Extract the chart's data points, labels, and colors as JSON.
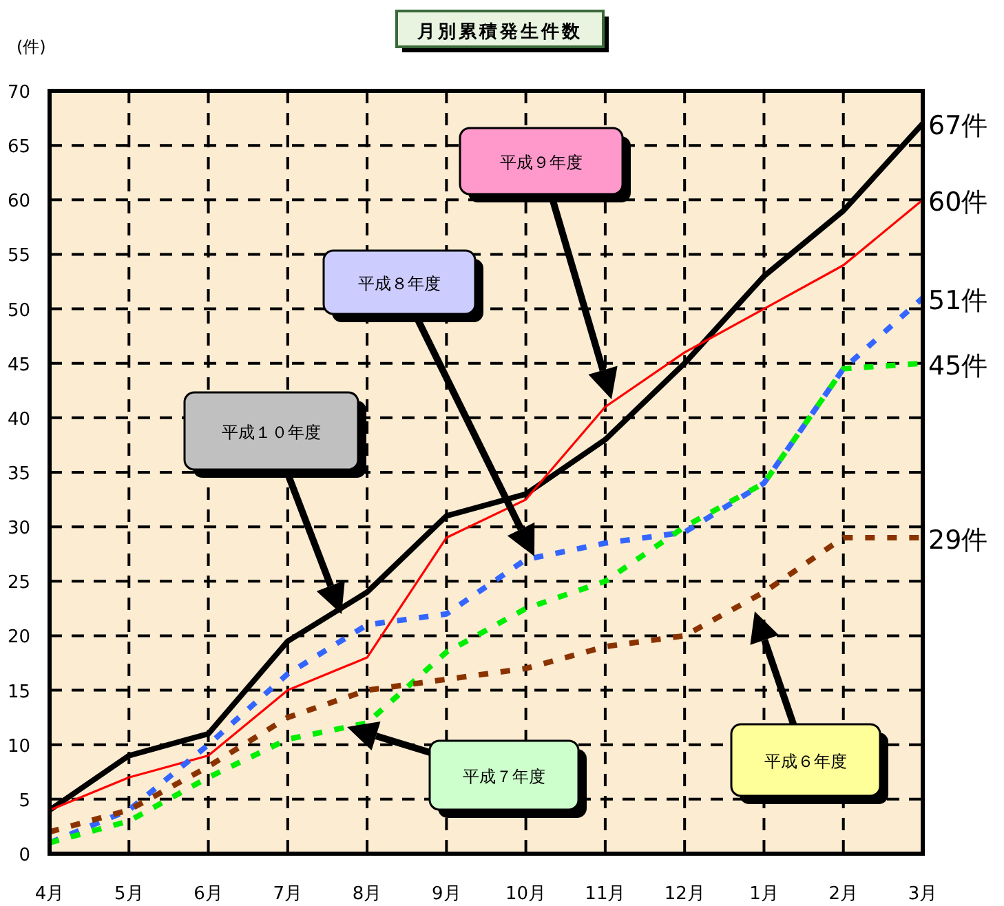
{
  "chart_data": {
    "type": "line",
    "title": "月別累積発生件数",
    "ylabel": "(件)",
    "categories": [
      "4月",
      "5月",
      "6月",
      "7月",
      "8月",
      "9月",
      "10月",
      "11月",
      "12月",
      "1月",
      "2月",
      "3月"
    ],
    "ylim": [
      0,
      70
    ],
    "yticks": [
      0,
      5,
      10,
      15,
      20,
      25,
      30,
      35,
      40,
      45,
      50,
      55,
      60,
      65,
      70
    ],
    "grid": true,
    "series": [
      {
        "color": "#000000",
        "line_style": "solid",
        "values": [
          4,
          9,
          11,
          19.5,
          24,
          31,
          33,
          38,
          45,
          53,
          59,
          67
        ],
        "value_labels": [
          null,
          null,
          null,
          null,
          null,
          null,
          null,
          null,
          null,
          null,
          null,
          "67件"
        ]
      },
      {
        "color": "#ff0000",
        "line_style": "solid",
        "values": [
          4,
          7,
          9,
          15,
          18,
          29,
          32.5,
          41,
          46,
          50,
          54,
          60
        ],
        "value_labels": [
          null,
          null,
          null,
          null,
          null,
          null,
          null,
          null,
          null,
          null,
          null,
          "60件"
        ]
      },
      {
        "color": "#3366ff",
        "line_style": "dashed",
        "values": [
          1,
          4,
          10,
          16.5,
          21,
          22,
          27,
          28.5,
          29.5,
          34,
          44.5,
          51
        ],
        "value_labels": [
          null,
          null,
          null,
          null,
          null,
          null,
          null,
          null,
          null,
          null,
          null,
          "51件"
        ]
      },
      {
        "color": "#00ee00",
        "line_style": "dashed",
        "values": [
          1,
          3,
          7,
          10.5,
          12,
          18.5,
          22.5,
          25,
          30,
          34,
          44.5,
          45
        ],
        "value_labels": [
          null,
          null,
          null,
          null,
          null,
          null,
          null,
          null,
          null,
          null,
          null,
          "45件"
        ]
      },
      {
        "color": "#8b3300",
        "line_style": "dashed",
        "values": [
          2,
          4,
          8,
          12.5,
          15,
          16,
          17,
          19,
          20,
          24,
          29,
          29
        ],
        "value_labels": [
          null,
          null,
          null,
          null,
          null,
          null,
          null,
          null,
          null,
          null,
          null,
          "29件"
        ]
      }
    ],
    "annotations": [
      "平成１０年度",
      "平成８年度",
      "平成９年度",
      "平成７年度",
      "平成６年度"
    ]
  }
}
